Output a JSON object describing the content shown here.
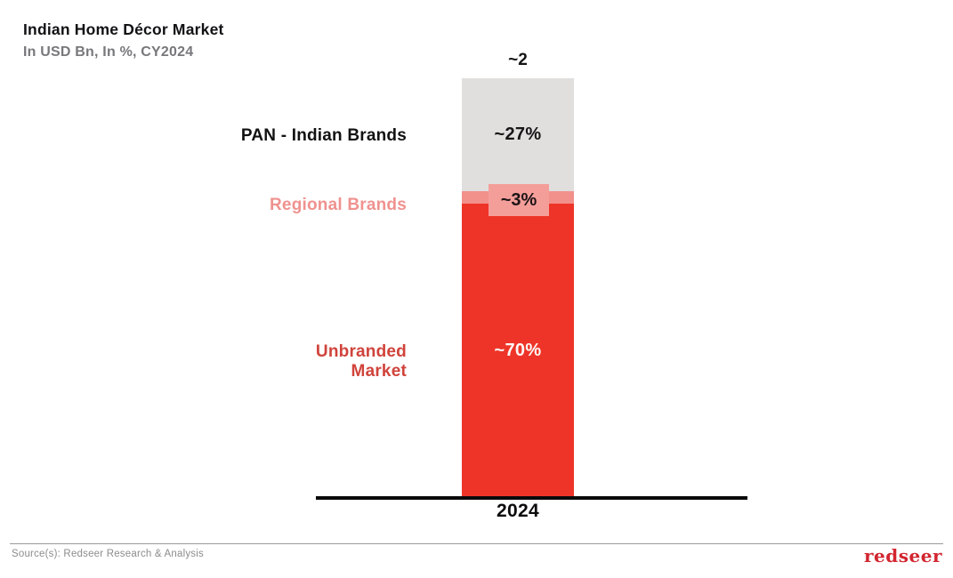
{
  "header": {
    "title": "Indian Home Décor Market",
    "subtitle": "In USD Bn, In %, CY2024"
  },
  "chart_data": {
    "type": "bar",
    "stacked": true,
    "title": "Indian Home Décor Market",
    "subtitle": "In USD Bn, In %, CY2024",
    "units": "USD Bn and % share, CY2024",
    "categories": [
      "2024"
    ],
    "total": {
      "value_usd_bn": 2,
      "label": "~2"
    },
    "series_order": "bottom-to-top",
    "series": [
      {
        "name": "Unbranded Market",
        "values": [
          70
        ],
        "label": "~70%",
        "color": "#EE3428",
        "text_color": "#FDF8F5"
      },
      {
        "name": "Regional Brands",
        "values": [
          3
        ],
        "label": "~3%",
        "color": "#F2918C",
        "callout_bg": "#F49E9A",
        "text_color": "#1C1416"
      },
      {
        "name": "PAN - Indian Brands",
        "values": [
          27
        ],
        "label": "~27%",
        "color": "#E0DFDD",
        "text_color": "#161616"
      }
    ],
    "xlabel": "",
    "ylabel": "",
    "grid": false,
    "legend_position": "left-of-bar"
  },
  "footer": {
    "source": "Source(s): Redseer Research & Analysis",
    "logo_text": "redseer"
  },
  "colors": {
    "accent_red": "#EE3428",
    "accent_pink": "#F2918C",
    "neutral_gray": "#E0DFDD",
    "label_red": "#D0433B",
    "label_pink": "#EF928F",
    "subtitle_gray": "#77787B",
    "source_gray": "#8C8C8C",
    "logo_red": "#D22630",
    "axis_black": "#0A0A0A"
  }
}
